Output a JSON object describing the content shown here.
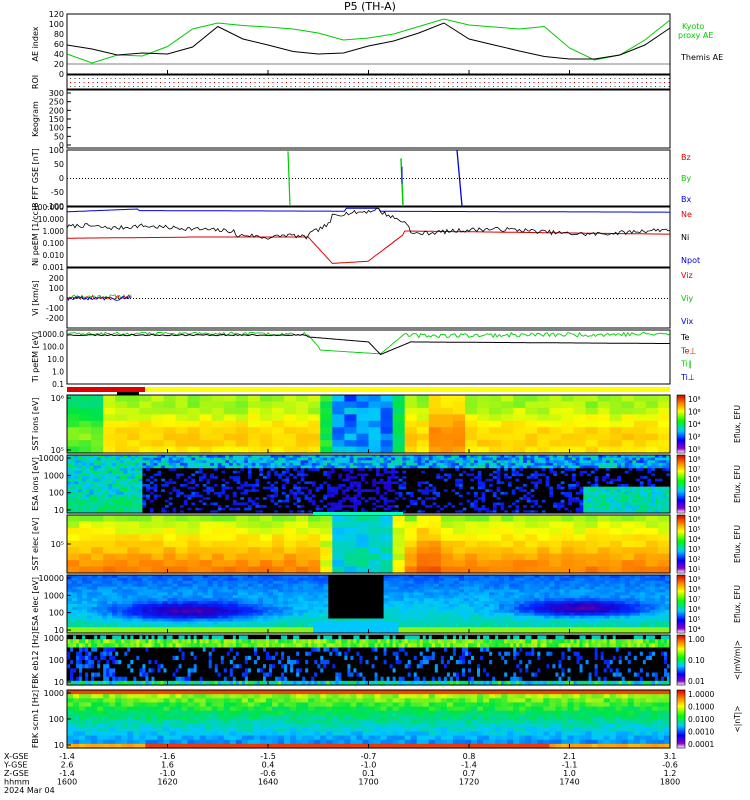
{
  "title": "P5 (TH-A)",
  "footer": {
    "row_labels": [
      "X-GSE",
      "Y-GSE",
      "Z-GSE",
      "hhmm",
      "2024 Mar 04"
    ],
    "columns": [
      {
        "x": "-1.4",
        "y": "2.6",
        "z": "-1.4",
        "t": "1600"
      },
      {
        "x": "-1.6",
        "y": "1.6",
        "z": "-1.0",
        "t": "1620"
      },
      {
        "x": "-1.5",
        "y": "0.4",
        "z": "-0.6",
        "t": "1640"
      },
      {
        "x": "-0.7",
        "y": "-1.0",
        "z": "0.1",
        "t": "1700"
      },
      {
        "x": "0.8",
        "y": "-1.4",
        "z": "0.7",
        "t": "1720"
      },
      {
        "x": "2.1",
        "y": "-1.1",
        "z": "1.0",
        "t": "1740"
      },
      {
        "x": "3.1",
        "y": "-0.6",
        "z": "1.2",
        "t": "1800"
      }
    ]
  },
  "colorbars": [
    {
      "label": "Eflux, EFU",
      "ticks": [
        "10⁸",
        "10⁶",
        "10⁴",
        "10²",
        "10⁰"
      ]
    },
    {
      "label": "Eflux, EFU",
      "ticks": [
        "10⁸",
        "10⁷",
        "10⁶",
        "10⁵",
        "10⁴",
        "10³"
      ]
    },
    {
      "label": "Eflux, EFU",
      "ticks": [
        "10⁶",
        "10⁵",
        "10⁴",
        "10³",
        "10²",
        "10¹"
      ]
    },
    {
      "label": "Eflux, EFU",
      "ticks": [
        "10⁹",
        "10⁸",
        "10⁷",
        "10⁶",
        "10⁵",
        "10⁴"
      ]
    },
    {
      "label": "<|mV/m|>",
      "ticks": [
        "1.00",
        "0.10",
        "0.01"
      ]
    },
    {
      "label": "<|nT|>",
      "ticks": [
        "1.0000",
        "0.1000",
        "0.0100",
        "0.0010",
        "0.0001"
      ]
    }
  ],
  "chart_data": [
    {
      "type": "line",
      "panel": "ae",
      "ylabel": "AE index",
      "ylim": [
        0,
        120
      ],
      "yticks": [
        "120",
        "100",
        "80",
        "60",
        "40",
        "20",
        "0"
      ],
      "x": [
        1600,
        1605,
        1610,
        1615,
        1620,
        1625,
        1630,
        1635,
        1640,
        1645,
        1650,
        1655,
        1700,
        1705,
        1710,
        1715,
        1720,
        1725,
        1730,
        1735,
        1740,
        1745,
        1750,
        1755,
        1800
      ],
      "series": [
        {
          "name": "Kyoto proxy AE",
          "color": "#00cc00",
          "values": [
            40,
            22,
            38,
            36,
            55,
            90,
            102,
            97,
            94,
            90,
            82,
            68,
            72,
            80,
            95,
            110,
            98,
            94,
            90,
            95,
            52,
            28,
            38,
            68,
            108
          ]
        },
        {
          "name": "Themis AE",
          "color": "#000000",
          "values": [
            58,
            50,
            38,
            42,
            40,
            54,
            95,
            70,
            58,
            45,
            40,
            42,
            56,
            66,
            82,
            102,
            70,
            58,
            46,
            35,
            30,
            30,
            38,
            58,
            92
          ]
        }
      ]
    },
    {
      "type": "line",
      "panel": "roi",
      "ylabel": "ROI"
    },
    {
      "type": "line",
      "panel": "keogram",
      "ylabel": "Keogram",
      "yticks": [
        "300",
        "250",
        "200",
        "150",
        "100",
        "50",
        "0"
      ]
    },
    {
      "type": "line",
      "panel": "bfield",
      "ylabel": "B FFT GSE [nT]",
      "ylim": [
        -100,
        100
      ],
      "yticks": [
        "100",
        "50",
        "0",
        "-50",
        "-100"
      ],
      "series": [
        {
          "name": "Bz",
          "color": "#dd0000"
        },
        {
          "name": "By",
          "color": "#00cc00"
        },
        {
          "name": "Bx",
          "color": "#0000dd"
        }
      ]
    },
    {
      "type": "line",
      "panel": "density",
      "ylabel": "Ni peEM [1/cc]",
      "yscale": "log",
      "yticks": [
        "100.000",
        "10.000",
        "1.000",
        "0.100",
        "0.010",
        "0.001"
      ],
      "series": [
        {
          "name": "Ne",
          "color": "#dd0000"
        },
        {
          "name": "Ni",
          "color": "#000000"
        },
        {
          "name": "Npot",
          "color": "#0000dd"
        }
      ]
    },
    {
      "type": "line",
      "panel": "velocity",
      "ylabel": "Vi [km/s]",
      "ylim": [
        -300,
        300
      ],
      "yticks": [
        "200",
        "100",
        "0",
        "-100",
        "-200"
      ],
      "series": [
        {
          "name": "Viz",
          "color": "#dd0000"
        },
        {
          "name": "Viy",
          "color": "#00cc00"
        },
        {
          "name": "Vix",
          "color": "#0000dd"
        }
      ]
    },
    {
      "type": "line",
      "panel": "temperature",
      "ylabel": "Ti peEM [eV]",
      "yscale": "log",
      "yticks": [
        "1000.0",
        "100.0",
        "10.0",
        "1.0",
        "0.1"
      ],
      "series": [
        {
          "name": "Te",
          "color": "#000000"
        },
        {
          "name": "Te⊥",
          "color": "#dd0000"
        },
        {
          "name": "Ti∥",
          "color": "#00cc00"
        },
        {
          "name": "Ti⊥",
          "color": "#0000dd"
        }
      ]
    },
    {
      "type": "heatmap",
      "panel": "sst_i",
      "ylabel": "SST ions [eV]",
      "yticks": [
        "10⁶",
        "10⁵"
      ]
    },
    {
      "type": "heatmap",
      "panel": "esa_i",
      "ylabel": "ESA ions [eV]",
      "yticks": [
        "10000",
        "1000",
        "100",
        "10"
      ]
    },
    {
      "type": "heatmap",
      "panel": "sst_e",
      "ylabel": "SST elec [eV]",
      "yticks": [
        "10⁵"
      ]
    },
    {
      "type": "heatmap",
      "panel": "esa_e",
      "ylabel": "ESA elec [eV]",
      "yticks": [
        "10000",
        "1000",
        "100",
        "10"
      ]
    },
    {
      "type": "heatmap",
      "panel": "fbk_e",
      "ylabel": "FBK eb12 [Hz]",
      "yticks": [
        "1000",
        "100",
        "10"
      ]
    },
    {
      "type": "heatmap",
      "panel": "fbk_b",
      "ylabel": "FBK scm1 [Hz]",
      "yticks": [
        "1000",
        "100",
        "10"
      ]
    }
  ]
}
